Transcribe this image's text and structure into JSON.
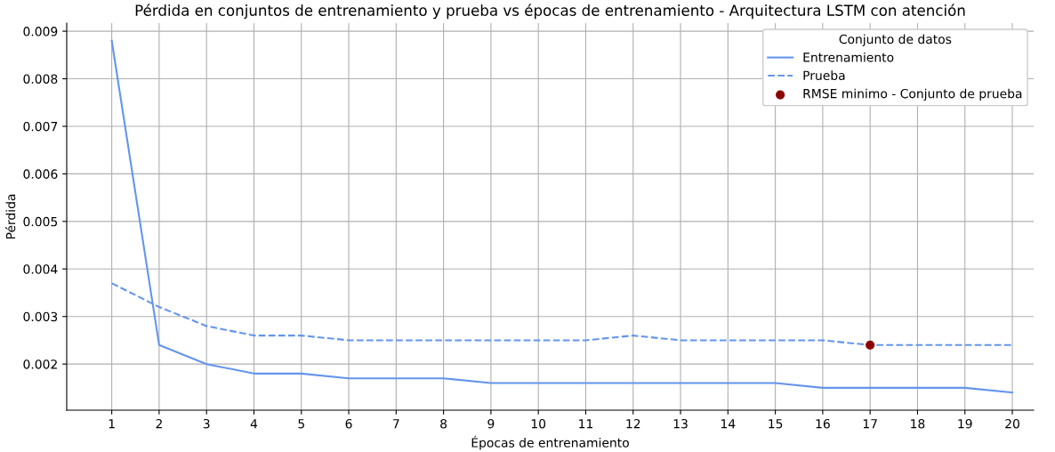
{
  "chart_data": {
    "type": "line",
    "title": "Pérdida en conjuntos de entrenamiento y prueba vs épocas de entrenamiento - Arquitectura LSTM con atención",
    "xlabel": "Épocas de entrenamiento",
    "ylabel": "Pérdida",
    "legend_title": "Conjunto de datos",
    "x": [
      1,
      2,
      3,
      4,
      5,
      6,
      7,
      8,
      9,
      10,
      11,
      12,
      13,
      14,
      15,
      16,
      17,
      18,
      19,
      20
    ],
    "series": [
      {
        "name": "Entrenamiento",
        "color": "#6495ed",
        "line_style": "solid",
        "values": [
          0.0088,
          0.0024,
          0.002,
          0.0018,
          0.0018,
          0.0017,
          0.0017,
          0.0017,
          0.0016,
          0.0016,
          0.0016,
          0.0016,
          0.0016,
          0.0016,
          0.0016,
          0.0015,
          0.0015,
          0.0015,
          0.0015,
          0.0014
        ]
      },
      {
        "name": "Prueba",
        "color": "#6495ed",
        "line_style": "dashed",
        "values": [
          0.0037,
          0.0032,
          0.0028,
          0.0026,
          0.0026,
          0.0025,
          0.0025,
          0.0025,
          0.0025,
          0.0025,
          0.0025,
          0.0026,
          0.0025,
          0.0025,
          0.0025,
          0.0025,
          0.0024,
          0.0024,
          0.0024,
          0.0024
        ]
      },
      {
        "name": "RMSE minimo - Conjunto de prueba",
        "type": "scatter",
        "color": "#8b0000",
        "marker": "circle",
        "x": [
          17
        ],
        "values": [
          0.0024
        ]
      }
    ],
    "xlim": [
      0.05,
      20.45
    ],
    "xticks": [
      1,
      2,
      3,
      4,
      5,
      6,
      7,
      8,
      9,
      10,
      11,
      12,
      13,
      14,
      15,
      16,
      17,
      18,
      19,
      20
    ],
    "ylim": [
      0.00103,
      0.00917
    ],
    "yticks": [
      0.002,
      0.003,
      0.004,
      0.005,
      0.006,
      0.007,
      0.008,
      0.009
    ],
    "grid": true,
    "legend": "top right"
  }
}
